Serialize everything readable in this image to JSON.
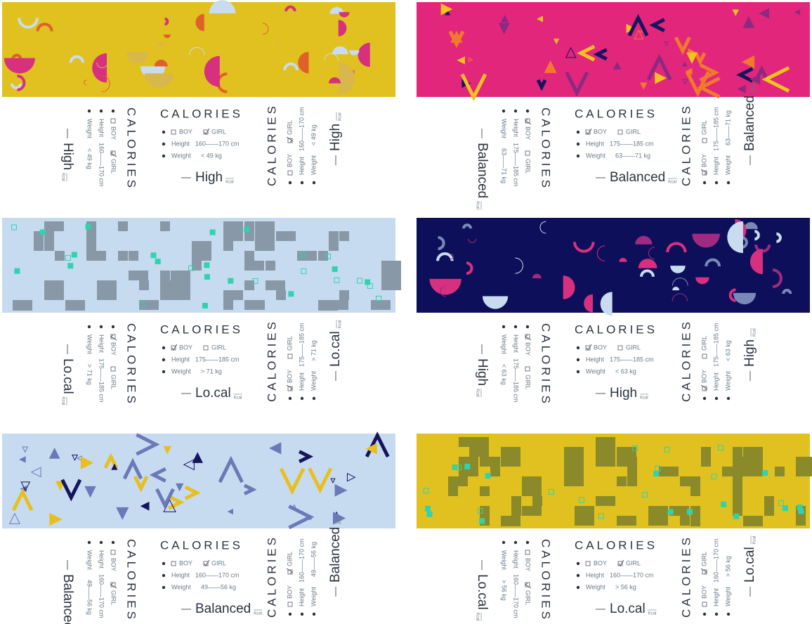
{
  "heading": "CALORIES",
  "unit": "Kcal",
  "boy": "BOY",
  "girl": "GIRL",
  "height_label": "Height",
  "weight_label": "Weight",
  "panels": [
    {
      "category": "High",
      "boy_checked": false,
      "girl_checked": true,
      "height": "160——170 cm",
      "weight": "< 49 kg",
      "pattern": "arcs",
      "background": "#e1c11f",
      "colors": [
        "#d6307f",
        "#e0602a",
        "#c9dcef",
        "#d8b84a"
      ]
    },
    {
      "category": "Balanced",
      "boy_checked": true,
      "girl_checked": false,
      "height": "175——185 cm",
      "weight": "63——71 kg",
      "pattern": "triangles",
      "background": "#e1267c",
      "colors": [
        "#f2c31f",
        "#15155e",
        "#f07a2a",
        "#8a2a80"
      ]
    },
    {
      "category": "Lo.cal",
      "boy_checked": true,
      "girl_checked": false,
      "height": "175——185 cm",
      "weight": "> 71 kg",
      "pattern": "blocks",
      "background": "#c6dbf0",
      "colors": [
        "#8898a6",
        "#2fd3b0"
      ]
    },
    {
      "category": "High",
      "boy_checked": true,
      "girl_checked": false,
      "height": "175——185 cm",
      "weight": "< 63 kg",
      "pattern": "arcs",
      "background": "#0e0f5a",
      "colors": [
        "#d6307f",
        "#c9dcef",
        "#7a8ab8",
        "#a02a80"
      ]
    },
    {
      "category": "Balanced",
      "boy_checked": false,
      "girl_checked": true,
      "height": "160——170 cm",
      "weight": "49——56 kg",
      "pattern": "triangles",
      "background": "#c6dbf0",
      "colors": [
        "#e8bf1f",
        "#15155e",
        "#6a7ab8"
      ]
    },
    {
      "category": "Lo.cal",
      "boy_checked": false,
      "girl_checked": true,
      "height": "160——170 cm",
      "weight": "> 56 kg",
      "pattern": "blocks",
      "background": "#e1c11f",
      "colors": [
        "#8a8a2a",
        "#2fd3b0"
      ]
    }
  ]
}
